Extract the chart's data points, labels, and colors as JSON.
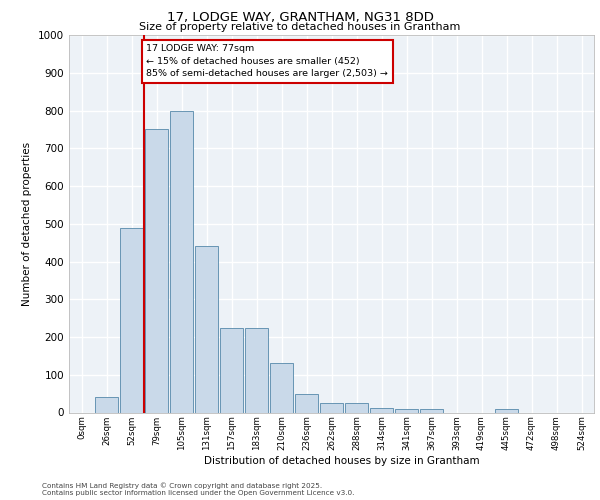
{
  "title1": "17, LODGE WAY, GRANTHAM, NG31 8DD",
  "title2": "Size of property relative to detached houses in Grantham",
  "xlabel": "Distribution of detached houses by size in Grantham",
  "ylabel": "Number of detached properties",
  "bar_labels": [
    "0sqm",
    "26sqm",
    "52sqm",
    "79sqm",
    "105sqm",
    "131sqm",
    "157sqm",
    "183sqm",
    "210sqm",
    "236sqm",
    "262sqm",
    "288sqm",
    "314sqm",
    "341sqm",
    "367sqm",
    "393sqm",
    "419sqm",
    "445sqm",
    "472sqm",
    "498sqm",
    "524sqm"
  ],
  "bar_values": [
    0,
    40,
    490,
    750,
    800,
    440,
    225,
    225,
    130,
    50,
    25,
    25,
    13,
    8,
    8,
    0,
    0,
    8,
    0,
    0,
    0
  ],
  "bar_color": "#c9d9e9",
  "bar_edgecolor": "#5588aa",
  "vline_color": "#cc0000",
  "annotation_text": "17 LODGE WAY: 77sqm\n← 15% of detached houses are smaller (452)\n85% of semi-detached houses are larger (2,503) →",
  "annotation_box_color": "#cc0000",
  "ylim": [
    0,
    1000
  ],
  "yticks": [
    0,
    100,
    200,
    300,
    400,
    500,
    600,
    700,
    800,
    900,
    1000
  ],
  "background_color": "#edf2f7",
  "grid_color": "#ffffff",
  "footnote1": "Contains HM Land Registry data © Crown copyright and database right 2025.",
  "footnote2": "Contains public sector information licensed under the Open Government Licence v3.0."
}
